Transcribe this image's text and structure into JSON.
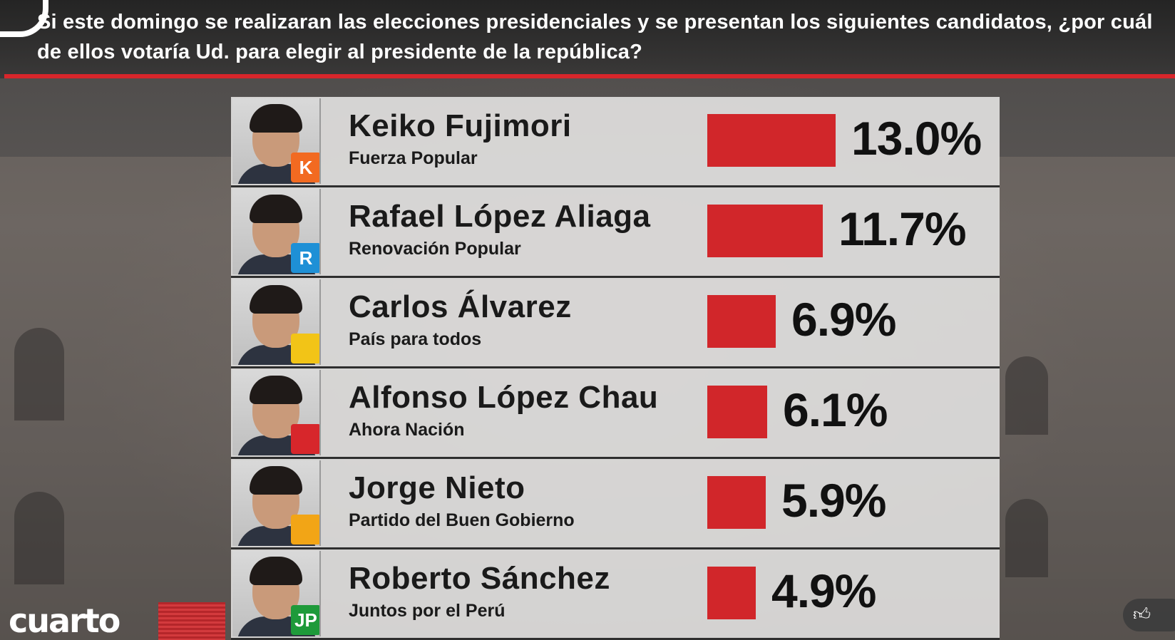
{
  "header": {
    "question": "Si este domingo se realizaran las elecciones presidenciales y se presentan los siguientes candidatos, ¿por cuál de ellos votaría Ud. para elegir al presidente de la república?"
  },
  "brand": {
    "name": "cuarto"
  },
  "icons": {
    "corner_logo": "channel-logo-icon",
    "like": "thumbs-up-icon",
    "dislike": "thumbs-down-icon"
  },
  "colors": {
    "bar": "#d1262a",
    "accent_rule": "#d7262b"
  },
  "chart_data": {
    "type": "bar",
    "orientation": "horizontal",
    "title": "",
    "xlabel": "",
    "ylabel": "",
    "unit": "%",
    "categories": [
      "Keiko Fujimori",
      "Rafael López Aliaga",
      "Carlos Álvarez",
      "Alfonso López Chau",
      "Jorge Nieto",
      "Roberto Sánchez"
    ],
    "parties": [
      "Fuerza Popular",
      "Renovación Popular",
      "País para todos",
      "Ahora Nación",
      "Partido del Buen Gobierno",
      "Juntos por el  Perú"
    ],
    "values": [
      13.0,
      11.7,
      6.9,
      6.1,
      5.9,
      4.9
    ],
    "labels": [
      "13.0%",
      "11.7%",
      "6.9%",
      "6.1%",
      "5.9%",
      "4.9%"
    ],
    "party_badges": [
      "K",
      "R",
      "",
      "",
      "",
      "JP"
    ],
    "badge_colors": [
      "#f26a21",
      "#1e90d6",
      "#f2c417",
      "#d7262b",
      "#f2a516",
      "#1e9a3a"
    ],
    "xlim": [
      0,
      13.0
    ]
  }
}
